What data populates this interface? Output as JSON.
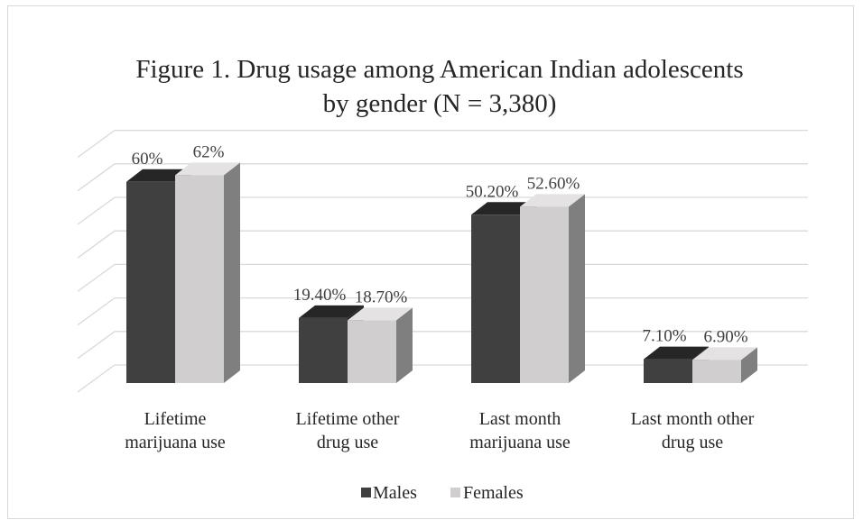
{
  "chart_data": {
    "type": "bar",
    "title": "Figure 1. Drug usage among American Indian adolescents by gender (N = 3,380)",
    "title_lines": [
      "Figure 1. Drug usage among American Indian adolescents",
      "by gender (N = 3,380)"
    ],
    "categories": [
      "Lifetime marijuana use",
      "Lifetime other drug use",
      "Last month marijuana use",
      "Last month other drug use"
    ],
    "category_lines": [
      [
        "Lifetime",
        "marijuana use"
      ],
      [
        "Lifetime other",
        "drug use"
      ],
      [
        "Last month",
        "marijuana use"
      ],
      [
        "Last month other",
        "drug use"
      ]
    ],
    "series": [
      {
        "name": "Males",
        "values": [
          60,
          19.4,
          50.2,
          7.1
        ],
        "labels": [
          "60%",
          "19.40%",
          "50.20%",
          "7.10%"
        ],
        "color": "#404040"
      },
      {
        "name": "Females",
        "values": [
          62,
          18.7,
          52.6,
          6.9
        ],
        "labels": [
          "62%",
          "18.70%",
          "52.60%",
          "6.90%"
        ],
        "color": "#d0cece"
      }
    ],
    "ylim": [
      0,
      70
    ],
    "grid": true,
    "legend_position": "bottom",
    "style": "3d-clustered-column"
  }
}
